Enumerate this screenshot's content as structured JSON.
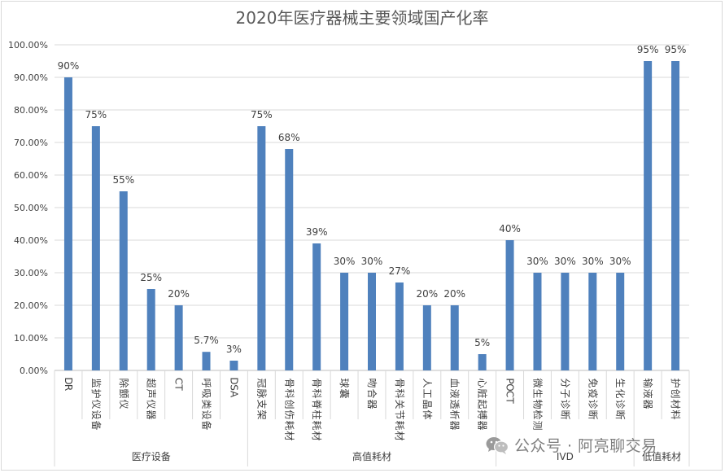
{
  "chart_data": {
    "type": "bar",
    "title": "2020年医疗器械主要领域国产化率",
    "categories": [
      "DR",
      "监护仪设备",
      "除颤仪",
      "超声仪器",
      "CT",
      "呼吸类设备",
      "DSA",
      "冠脉支架",
      "骨科创伤耗材",
      "骨科脊柱耗材",
      "球囊",
      "吻合器",
      "骨科关节耗材",
      "人工晶体",
      "血液透析器",
      "心脏起搏器",
      "POCT",
      "微生物检测",
      "分子诊断",
      "免疫诊断",
      "生化诊断",
      "输液器",
      "护创材料"
    ],
    "values": [
      90,
      75,
      55,
      25,
      20,
      5.7,
      3,
      75,
      68,
      39,
      30,
      30,
      27,
      20,
      20,
      5,
      40,
      30,
      30,
      30,
      30,
      95,
      95
    ],
    "data_labels": [
      "90%",
      "75%",
      "55%",
      "25%",
      "20%",
      "5.7%",
      "3%",
      "75%",
      "68%",
      "39%",
      "30%",
      "30%",
      "27%",
      "20%",
      "20%",
      "5%",
      "40%",
      "30%",
      "30%",
      "30%",
      "30%",
      "95%",
      "95%"
    ],
    "groups": [
      {
        "name": "医疗设备",
        "start": 0,
        "end": 6
      },
      {
        "name": "高值耗材",
        "start": 7,
        "end": 15
      },
      {
        "name": "IVD",
        "start": 16,
        "end": 20
      },
      {
        "name": "低值耗材",
        "start": 21,
        "end": 22
      }
    ],
    "y_ticks": [
      "0.00%",
      "10.00%",
      "20.00%",
      "30.00%",
      "40.00%",
      "50.00%",
      "60.00%",
      "70.00%",
      "80.00%",
      "90.00%",
      "100.00%"
    ],
    "ylim": [
      0,
      100
    ],
    "grid": true,
    "legend": "none",
    "colors": {
      "bar": "#4f81bd",
      "grid": "#d9d9d9",
      "text": "#404040",
      "title": "#595959"
    }
  },
  "watermark": {
    "text": "公众号 · 阿亮聊交易",
    "icon": "wechat-icon"
  }
}
